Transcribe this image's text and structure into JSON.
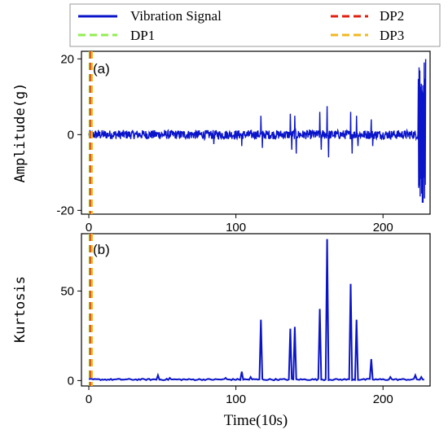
{
  "colors": {
    "signal": "#0a14c8",
    "dp1": "#90ee50",
    "dp2": "#e02010",
    "dp3": "#f0b820"
  },
  "legend": {
    "entries": [
      {
        "label": "Vibration Signal",
        "color": "#0a14c8",
        "style": "solid"
      },
      {
        "label": "DP1",
        "color": "#90ee50",
        "style": "dashed"
      },
      {
        "label": "DP2",
        "color": "#e02010",
        "style": "dashed"
      },
      {
        "label": "DP3",
        "color": "#f0b820",
        "style": "dashed"
      }
    ],
    "placement": "top"
  },
  "chart_data": [
    {
      "type": "line",
      "panel_label": "(a)",
      "ylabel": "Amplitude(g)",
      "xlabel": "",
      "xlim": [
        -5,
        232
      ],
      "ylim": [
        -21,
        22
      ],
      "xticks": [
        0,
        100,
        200
      ],
      "yticks": [
        -20,
        0,
        20
      ],
      "ytick_labels": [
        "-20",
        "0",
        "20"
      ],
      "vertical_lines": [
        {
          "name": "DP1",
          "x": 0.6
        },
        {
          "name": "DP2",
          "x": 1.2
        },
        {
          "name": "DP3",
          "x": 2.0
        }
      ],
      "series": [
        {
          "name": "Vibration Signal",
          "baseline_amplitude": 1.2,
          "spikes": [
            {
              "x": 117,
              "y": 5
            },
            {
              "x": 118,
              "y": -3.5
            },
            {
              "x": 137,
              "y": 5.5
            },
            {
              "x": 138,
              "y": -4
            },
            {
              "x": 140,
              "y": 5
            },
            {
              "x": 141,
              "y": -5
            },
            {
              "x": 157,
              "y": 6
            },
            {
              "x": 158,
              "y": -4
            },
            {
              "x": 162,
              "y": 7.5
            },
            {
              "x": 163,
              "y": -6
            },
            {
              "x": 178,
              "y": 6
            },
            {
              "x": 179,
              "y": -5
            },
            {
              "x": 182,
              "y": 5
            },
            {
              "x": 183,
              "y": -3
            },
            {
              "x": 192,
              "y": 4
            },
            {
              "x": 193,
              "y": -3
            },
            {
              "x": 104,
              "y": -3
            },
            {
              "x": 85,
              "y": -2.5
            }
          ],
          "burst": {
            "x_start": 224,
            "x_end": 229,
            "max": 20,
            "min": -18
          }
        }
      ]
    },
    {
      "type": "line",
      "panel_label": "(b)",
      "ylabel": "Kurtosis",
      "xlabel": "Time(10s)",
      "xlim": [
        -5,
        232
      ],
      "ylim": [
        -3,
        82
      ],
      "xticks": [
        0,
        100,
        200
      ],
      "yticks": [
        0,
        50
      ],
      "ytick_labels": [
        "0",
        "50"
      ],
      "vertical_lines": [
        {
          "name": "DP1",
          "x": 0.6
        },
        {
          "name": "DP2",
          "x": 1.2
        },
        {
          "name": "DP3",
          "x": 2.0
        }
      ],
      "series": [
        {
          "name": "Vibration Signal",
          "baseline": 0.6,
          "peaks": [
            {
              "x": 47,
              "y": 3
            },
            {
              "x": 55,
              "y": 1.5
            },
            {
              "x": 93,
              "y": 1.5
            },
            {
              "x": 104,
              "y": 5
            },
            {
              "x": 110,
              "y": 2
            },
            {
              "x": 117,
              "y": 34
            },
            {
              "x": 137,
              "y": 29
            },
            {
              "x": 140,
              "y": 30
            },
            {
              "x": 157,
              "y": 40
            },
            {
              "x": 162,
              "y": 79
            },
            {
              "x": 178,
              "y": 54
            },
            {
              "x": 182,
              "y": 34
            },
            {
              "x": 192,
              "y": 12
            },
            {
              "x": 205,
              "y": 2
            },
            {
              "x": 222,
              "y": 3
            },
            {
              "x": 226,
              "y": 2
            }
          ],
          "x_end": 228
        }
      ]
    }
  ]
}
